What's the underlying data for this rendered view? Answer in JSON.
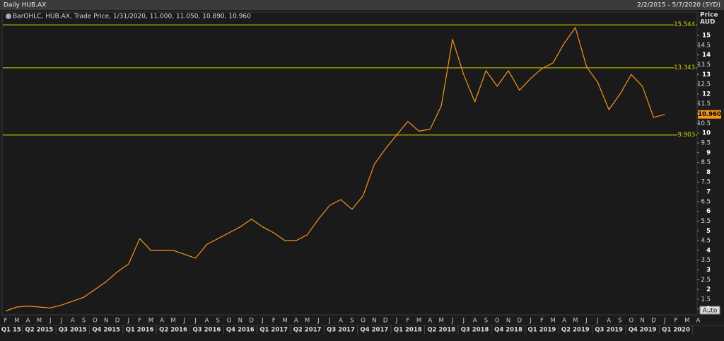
{
  "chart_data": {
    "type": "line",
    "title": "Daily HUB.AX",
    "date_range": "2/2/2015 - 5/7/2020 (SYD)",
    "legend_text": "BarOHLC, HUB.AX, Trade Price, 1/31/2020, 11.000, 11.050, 10.890, 10.960",
    "y_axis_title": "Price",
    "y_axis_unit": "AUD",
    "auto_button": "Auto",
    "x": [
      "2015-02",
      "2015-03",
      "2015-04",
      "2015-05",
      "2015-06",
      "2015-07",
      "2015-08",
      "2015-09",
      "2015-10",
      "2015-11",
      "2015-12",
      "2016-01",
      "2016-02",
      "2016-03",
      "2016-04",
      "2016-05",
      "2016-06",
      "2016-07",
      "2016-08",
      "2016-09",
      "2016-10",
      "2016-11",
      "2016-12",
      "2017-01",
      "2017-02",
      "2017-03",
      "2017-04",
      "2017-05",
      "2017-06",
      "2017-07",
      "2017-08",
      "2017-09",
      "2017-10",
      "2017-11",
      "2017-12",
      "2018-01",
      "2018-02",
      "2018-03",
      "2018-04",
      "2018-05",
      "2018-06",
      "2018-07",
      "2018-08",
      "2018-09",
      "2018-10",
      "2018-11",
      "2018-12",
      "2019-01",
      "2019-02",
      "2019-03",
      "2019-04",
      "2019-05",
      "2019-06",
      "2019-07",
      "2019-08",
      "2019-09",
      "2019-10",
      "2019-11",
      "2019-12",
      "2020-01"
    ],
    "series": [
      {
        "name": "HUB.AX",
        "color": "#f7941d",
        "values": [
          0.9,
          1.1,
          1.15,
          1.1,
          1.05,
          1.2,
          1.4,
          1.6,
          2.0,
          2.4,
          2.9,
          3.3,
          4.6,
          4.0,
          4.0,
          4.0,
          3.8,
          3.6,
          4.3,
          4.6,
          4.9,
          5.2,
          5.6,
          5.2,
          4.9,
          4.5,
          4.5,
          4.8,
          5.6,
          6.3,
          6.6,
          6.1,
          6.8,
          8.4,
          9.2,
          9.9,
          10.6,
          10.1,
          10.2,
          11.4,
          14.8,
          13.0,
          11.6,
          13.2,
          12.4,
          13.2,
          12.2,
          12.8,
          13.3,
          13.6,
          14.6,
          15.4,
          13.4,
          12.6,
          11.2,
          12.0,
          13.0,
          12.4,
          10.8,
          10.96
        ]
      }
    ],
    "month_labels": [
      "F",
      "M",
      "A",
      "M",
      "J",
      "J",
      "A",
      "S",
      "O",
      "N",
      "D",
      "J",
      "F",
      "M",
      "A",
      "M",
      "J",
      "J",
      "A",
      "S",
      "O",
      "N",
      "D",
      "J",
      "F",
      "M",
      "A",
      "M",
      "J",
      "J",
      "A",
      "S",
      "O",
      "N",
      "D",
      "J",
      "F",
      "M",
      "A",
      "M",
      "J",
      "J",
      "A",
      "S",
      "O",
      "N",
      "D",
      "J",
      "F",
      "M",
      "A",
      "M",
      "J",
      "J",
      "A",
      "S",
      "O",
      "N",
      "D",
      "J",
      "F",
      "M",
      "A"
    ],
    "quarter_labels": [
      "Q1 15",
      "Q2 2015",
      "Q3 2015",
      "Q4 2015",
      "Q1 2016",
      "Q2 2016",
      "Q3 2016",
      "Q4 2016",
      "Q1 2017",
      "Q2 2017",
      "Q3 2017",
      "Q4 2017",
      "Q1 2018",
      "Q2 2018",
      "Q3 2018",
      "Q4 2018",
      "Q1 2019",
      "Q2 2019",
      "Q3 2019",
      "Q4 2019",
      "Q1 2020"
    ],
    "ylim": [
      0.7,
      15.8
    ],
    "yticks": [
      1,
      1.5,
      2,
      2.5,
      3,
      3.5,
      4,
      4.5,
      5,
      5.5,
      6,
      6.5,
      7,
      7.5,
      8,
      8.5,
      9,
      9.5,
      10,
      10.5,
      11,
      11.5,
      12,
      12.5,
      13,
      13.5,
      14,
      14.5,
      15
    ],
    "ref_lines": [
      {
        "value": 15.544,
        "label": "15.544"
      },
      {
        "value": 13.343,
        "label": "13.343"
      },
      {
        "value": 9.903,
        "label": "9.903"
      }
    ],
    "ref_color": "#d4d400",
    "last_price": {
      "value": 10.96,
      "label": "10.960"
    }
  }
}
